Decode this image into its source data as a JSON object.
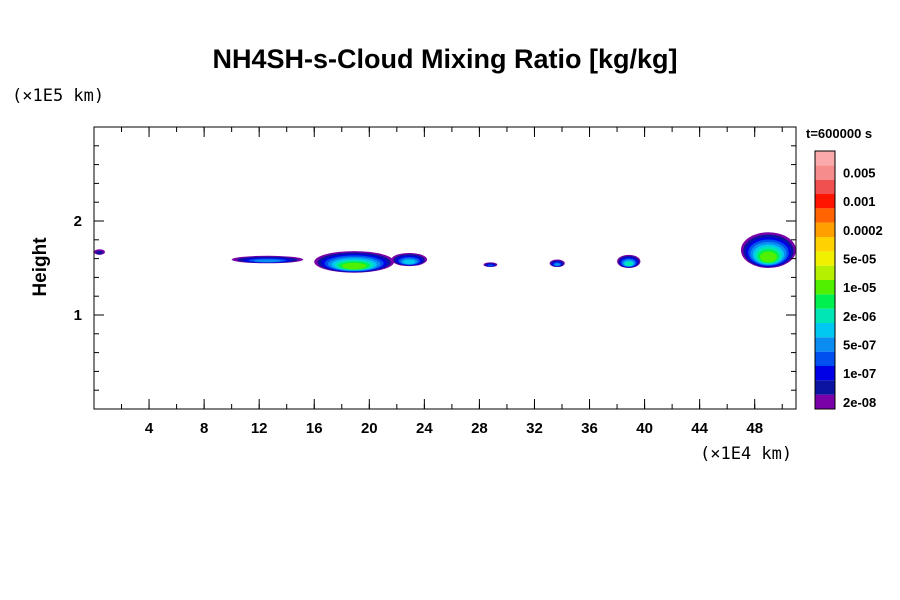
{
  "chart_data": {
    "type": "heatmap",
    "title": "NH4SH-s-Cloud Mixing Ratio [kg/kg]",
    "xlabel": "",
    "ylabel": "Height",
    "x_unit": "(×1E4 km)",
    "y_unit": "(×1E5 km)",
    "time_label": "t=600000 s",
    "xlim": [
      0,
      51
    ],
    "ylim": [
      0,
      3
    ],
    "x_ticks": [
      4,
      8,
      12,
      16,
      20,
      24,
      28,
      32,
      36,
      40,
      44,
      48
    ],
    "y_ticks": [
      1,
      2
    ],
    "x_minor_step": 2,
    "y_minor_step": 0.2,
    "colorbar": {
      "levels": [
        {
          "color": "#7a00a8",
          "label": "2e-08"
        },
        {
          "color": "#0a14a0",
          "label": ""
        },
        {
          "color": "#0000e6",
          "label": "1e-07"
        },
        {
          "color": "#0050f0",
          "label": ""
        },
        {
          "color": "#0a8cf0",
          "label": "5e-07"
        },
        {
          "color": "#00c8f0",
          "label": ""
        },
        {
          "color": "#00e6b4",
          "label": "2e-06"
        },
        {
          "color": "#00f050",
          "label": ""
        },
        {
          "color": "#50f000",
          "label": "1e-05"
        },
        {
          "color": "#b4f000",
          "label": ""
        },
        {
          "color": "#f0f000",
          "label": "5e-05"
        },
        {
          "color": "#ffd200",
          "label": ""
        },
        {
          "color": "#ffa000",
          "label": "0.0002"
        },
        {
          "color": "#ff6400",
          "label": ""
        },
        {
          "color": "#ff1400",
          "label": "0.001"
        },
        {
          "color": "#f05050",
          "label": ""
        },
        {
          "color": "#f78c8c",
          "label": "0.005"
        },
        {
          "color": "#faaaaa",
          "label": ""
        }
      ]
    },
    "cloud_patches": [
      {
        "x_min": 0.0,
        "x_max": 0.8,
        "y_bottom": 1.64,
        "y_top": 1.7,
        "max_level": 1
      },
      {
        "x_min": 10.0,
        "x_max": 15.2,
        "y_bottom": 1.55,
        "y_top": 1.63,
        "max_level": 4
      },
      {
        "x_min": 16.0,
        "x_max": 21.8,
        "y_bottom": 1.45,
        "y_top": 1.68,
        "max_level": 8
      },
      {
        "x_min": 21.6,
        "x_max": 24.2,
        "y_bottom": 1.52,
        "y_top": 1.66,
        "max_level": 5
      },
      {
        "x_min": 28.3,
        "x_max": 29.3,
        "y_bottom": 1.51,
        "y_top": 1.56,
        "max_level": 3
      },
      {
        "x_min": 33.1,
        "x_max": 34.2,
        "y_bottom": 1.51,
        "y_top": 1.59,
        "max_level": 4
      },
      {
        "x_min": 38.0,
        "x_max": 39.7,
        "y_bottom": 1.5,
        "y_top": 1.64,
        "max_level": 6
      },
      {
        "x_min": 47.0,
        "x_max": 51.0,
        "y_bottom": 1.5,
        "y_top": 1.88,
        "max_level": 8
      }
    ]
  }
}
